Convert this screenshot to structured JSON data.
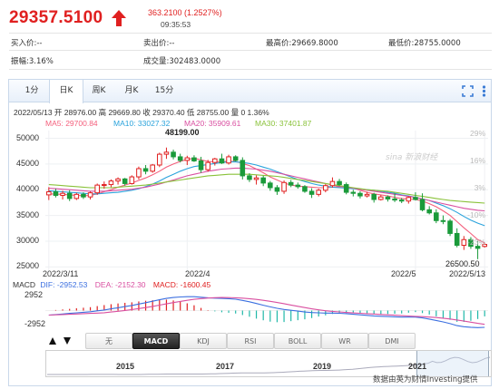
{
  "quote": {
    "price": "29357.5100",
    "change": "363.2100 (1.2527%)",
    "time": "09:35:53",
    "up_color": "#e02020"
  },
  "info": {
    "row1": [
      "买入价:--",
      "卖出价:--",
      "最高价:29669.8000",
      "最低价:28755.0000"
    ],
    "row2": [
      "振幅:3.16%",
      "成交量:302483.0000"
    ]
  },
  "tabs": [
    {
      "label": "1分",
      "active": false
    },
    {
      "label": "日K",
      "active": true
    },
    {
      "label": "周K",
      "active": false
    },
    {
      "label": "月K",
      "active": false
    },
    {
      "label": "15分",
      "active": false
    }
  ],
  "toolbar_icons": [
    "fullscreen-icon",
    "more-icon"
  ],
  "ohlc_line": "2022/05/13 开 28976.00 高 29669.80 收 29370.40 低 28755.00 量 0 1.36%",
  "ma_legend": [
    {
      "label": "MA5: 29700.84",
      "color": "#f45f7c"
    },
    {
      "label": "MA10: 33027.32",
      "color": "#2aa3dc"
    },
    {
      "label": "MA20: 35909.61",
      "color": "#d94fa0"
    },
    {
      "label": "MA30: 37401.87",
      "color": "#8ac23a"
    }
  ],
  "watermark": "sina 新浪财经",
  "annotations": {
    "high": "48199.00",
    "low": "26500.50"
  },
  "macd_legend": {
    "name": "MACD",
    "dif": "DIF: -2952.53",
    "dea": "DEA: -2152.30",
    "macd": "MACD: -1600.45",
    "dif_color": "#3b6fe0",
    "dea_color": "#d94fa0",
    "macd_color": "#e02020"
  },
  "macd_axis": [
    "2952",
    "-2952"
  ],
  "indicator_buttons": [
    {
      "label": "无",
      "active": false
    },
    {
      "label": "MACD",
      "active": true
    },
    {
      "label": "KDJ",
      "active": false
    },
    {
      "label": "RSI",
      "active": false
    },
    {
      "label": "BOLL",
      "active": false
    },
    {
      "label": "WR",
      "active": false
    },
    {
      "label": "DMI",
      "active": false
    }
  ],
  "overview_years": [
    "2015",
    "2017",
    "2019",
    "2021"
  ],
  "source_text": "数据由英为财情Investing提供",
  "chart_data": {
    "type": "candlestick",
    "x_tick_labels": [
      "2022/3/11",
      "2022/4",
      "2022/5",
      "2022/5/13"
    ],
    "y_ticks": [
      50000,
      45000,
      40000,
      35000,
      30000,
      25000
    ],
    "ylim": [
      24000,
      51500
    ],
    "right_pct_ticks": [
      "29%",
      "16%",
      "3%",
      "-10%",
      "-23%"
    ],
    "candles": [
      {
        "o": 39000,
        "h": 40500,
        "l": 38000,
        "c": 39600
      },
      {
        "o": 39600,
        "h": 40200,
        "l": 38500,
        "c": 38900
      },
      {
        "o": 38900,
        "h": 39800,
        "l": 38100,
        "c": 39300
      },
      {
        "o": 39300,
        "h": 39900,
        "l": 37800,
        "c": 38300
      },
      {
        "o": 38300,
        "h": 39400,
        "l": 38000,
        "c": 39100
      },
      {
        "o": 39100,
        "h": 39500,
        "l": 38200,
        "c": 38600
      },
      {
        "o": 38600,
        "h": 39700,
        "l": 38100,
        "c": 39400
      },
      {
        "o": 39400,
        "h": 41200,
        "l": 39000,
        "c": 40900
      },
      {
        "o": 40900,
        "h": 41600,
        "l": 40200,
        "c": 41000
      },
      {
        "o": 41000,
        "h": 42000,
        "l": 40500,
        "c": 41700
      },
      {
        "o": 41700,
        "h": 42400,
        "l": 41000,
        "c": 42100
      },
      {
        "o": 42100,
        "h": 42300,
        "l": 40800,
        "c": 41200
      },
      {
        "o": 41200,
        "h": 42800,
        "l": 41000,
        "c": 42500
      },
      {
        "o": 42500,
        "h": 44500,
        "l": 42000,
        "c": 44100
      },
      {
        "o": 44100,
        "h": 44800,
        "l": 43000,
        "c": 43600
      },
      {
        "o": 43600,
        "h": 45000,
        "l": 43300,
        "c": 44800
      },
      {
        "o": 44800,
        "h": 47200,
        "l": 44400,
        "c": 46900
      },
      {
        "o": 46900,
        "h": 48199,
        "l": 46000,
        "c": 47300
      },
      {
        "o": 47300,
        "h": 47800,
        "l": 45900,
        "c": 46400
      },
      {
        "o": 46400,
        "h": 47000,
        "l": 45300,
        "c": 45700
      },
      {
        "o": 45700,
        "h": 46600,
        "l": 44800,
        "c": 46200
      },
      {
        "o": 46200,
        "h": 46700,
        "l": 45400,
        "c": 45600
      },
      {
        "o": 45600,
        "h": 46400,
        "l": 43300,
        "c": 43900
      },
      {
        "o": 43900,
        "h": 45800,
        "l": 43500,
        "c": 45300
      },
      {
        "o": 45300,
        "h": 46200,
        "l": 44700,
        "c": 46000
      },
      {
        "o": 46000,
        "h": 47000,
        "l": 45000,
        "c": 45200
      },
      {
        "o": 45200,
        "h": 46800,
        "l": 44900,
        "c": 46400
      },
      {
        "o": 46400,
        "h": 46700,
        "l": 45500,
        "c": 45700
      },
      {
        "o": 45700,
        "h": 46300,
        "l": 42000,
        "c": 42700
      },
      {
        "o": 42700,
        "h": 43200,
        "l": 41500,
        "c": 42000
      },
      {
        "o": 42000,
        "h": 42800,
        "l": 41000,
        "c": 42300
      },
      {
        "o": 42300,
        "h": 42700,
        "l": 40700,
        "c": 41300
      },
      {
        "o": 41300,
        "h": 41700,
        "l": 39800,
        "c": 40400
      },
      {
        "o": 40400,
        "h": 40900,
        "l": 39000,
        "c": 39700
      },
      {
        "o": 39700,
        "h": 41800,
        "l": 39200,
        "c": 41400
      },
      {
        "o": 41400,
        "h": 41900,
        "l": 40500,
        "c": 40900
      },
      {
        "o": 40900,
        "h": 41400,
        "l": 40200,
        "c": 40600
      },
      {
        "o": 40600,
        "h": 40900,
        "l": 39400,
        "c": 39700
      },
      {
        "o": 39700,
        "h": 40300,
        "l": 38400,
        "c": 39100
      },
      {
        "o": 39100,
        "h": 40200,
        "l": 38700,
        "c": 39900
      },
      {
        "o": 39900,
        "h": 41100,
        "l": 39500,
        "c": 40800
      },
      {
        "o": 40800,
        "h": 42400,
        "l": 40400,
        "c": 41600
      },
      {
        "o": 41600,
        "h": 42100,
        "l": 40700,
        "c": 41000
      },
      {
        "o": 41000,
        "h": 41400,
        "l": 39100,
        "c": 39500
      },
      {
        "o": 39500,
        "h": 40000,
        "l": 38700,
        "c": 39300
      },
      {
        "o": 39300,
        "h": 39700,
        "l": 38300,
        "c": 38800
      },
      {
        "o": 38800,
        "h": 39600,
        "l": 38500,
        "c": 39100
      },
      {
        "o": 39100,
        "h": 39400,
        "l": 37500,
        "c": 38100
      },
      {
        "o": 38100,
        "h": 39000,
        "l": 37900,
        "c": 38600
      },
      {
        "o": 38600,
        "h": 38900,
        "l": 37700,
        "c": 38200
      },
      {
        "o": 38200,
        "h": 39300,
        "l": 37600,
        "c": 38000
      },
      {
        "o": 38000,
        "h": 38400,
        "l": 37400,
        "c": 37800
      },
      {
        "o": 37800,
        "h": 38700,
        "l": 37300,
        "c": 38500
      },
      {
        "o": 38500,
        "h": 39500,
        "l": 37900,
        "c": 38100
      },
      {
        "o": 38100,
        "h": 39300,
        "l": 35800,
        "c": 36100
      },
      {
        "o": 36100,
        "h": 36800,
        "l": 35200,
        "c": 35500
      },
      {
        "o": 35500,
        "h": 36200,
        "l": 33500,
        "c": 34000
      },
      {
        "o": 34000,
        "h": 35000,
        "l": 33300,
        "c": 33900
      },
      {
        "o": 33900,
        "h": 34300,
        "l": 31000,
        "c": 31500
      },
      {
        "o": 31500,
        "h": 32500,
        "l": 28800,
        "c": 29200
      },
      {
        "o": 29200,
        "h": 31000,
        "l": 28300,
        "c": 30300
      },
      {
        "o": 30300,
        "h": 30800,
        "l": 28500,
        "c": 29000
      },
      {
        "o": 29000,
        "h": 30000,
        "l": 26500.5,
        "c": 28600
      },
      {
        "o": 28976,
        "h": 29669.8,
        "l": 28755,
        "c": 29370.4
      }
    ],
    "ma_series": [
      {
        "name": "MA5",
        "values": [
          39200,
          39150,
          39100,
          39000,
          38900,
          38850,
          38900,
          39200,
          39600,
          40000,
          40500,
          40900,
          41300,
          41800,
          42300,
          42900,
          43600,
          44400,
          45000,
          45500,
          45900,
          46100,
          45800,
          45500,
          45400,
          45500,
          45500,
          45500,
          45100,
          44700,
          44000,
          43300,
          42500,
          41900,
          41300,
          40900,
          40700,
          40600,
          40500,
          40400,
          40400,
          40500,
          40600,
          40500,
          40300,
          39900,
          39500,
          39200,
          39000,
          38800,
          38500,
          38300,
          38200,
          38100,
          37800,
          37300,
          36700,
          35900,
          35000,
          33800,
          32600,
          31500,
          30300,
          29700
        ]
      },
      {
        "name": "MA10",
        "values": [
          39800,
          39700,
          39600,
          39500,
          39400,
          39300,
          39200,
          39200,
          39300,
          39400,
          39500,
          39700,
          39900,
          40200,
          40600,
          41100,
          41700,
          42400,
          43000,
          43600,
          44100,
          44500,
          44700,
          44900,
          45100,
          45300,
          45400,
          45400,
          45300,
          45100,
          44800,
          44400,
          44000,
          43500,
          43000,
          42500,
          42000,
          41600,
          41200,
          40900,
          40700,
          40500,
          40400,
          40300,
          40200,
          40100,
          40000,
          39900,
          39700,
          39500,
          39300,
          39000,
          38800,
          38500,
          38200,
          37900,
          37400,
          36900,
          36300,
          35600,
          34800,
          34100,
          33500,
          33000
        ]
      },
      {
        "name": "MA20",
        "values": [
          40300,
          40200,
          40100,
          40000,
          39900,
          39800,
          39700,
          39700,
          39700,
          39800,
          39900,
          40000,
          40100,
          40300,
          40500,
          40800,
          41100,
          41500,
          41900,
          42300,
          42700,
          43000,
          43300,
          43600,
          43800,
          44000,
          44100,
          44200,
          44200,
          44100,
          44000,
          43800,
          43600,
          43300,
          43000,
          42700,
          42400,
          42100,
          41800,
          41500,
          41200,
          40900,
          40700,
          40500,
          40300,
          40100,
          39900,
          39700,
          39500,
          39300,
          39100,
          38900,
          38700,
          38500,
          38200,
          37900,
          37600,
          37300,
          37000,
          36700,
          36400,
          36200,
          36000,
          35900
        ]
      },
      {
        "name": "MA30",
        "values": [
          41000,
          40900,
          40800,
          40700,
          40600,
          40500,
          40400,
          40400,
          40400,
          40400,
          40500,
          40600,
          40700,
          40800,
          40900,
          41100,
          41300,
          41500,
          41700,
          41900,
          42100,
          42300,
          42500,
          42700,
          42800,
          42900,
          43000,
          43000,
          43000,
          43000,
          42900,
          42800,
          42700,
          42600,
          42400,
          42200,
          42000,
          41800,
          41600,
          41400,
          41200,
          41000,
          40800,
          40600,
          40400,
          40200,
          40000,
          39900,
          39800,
          39700,
          39500,
          39300,
          39100,
          38900,
          38700,
          38500,
          38300,
          38100,
          37900,
          37800,
          37700,
          37600,
          37500,
          37400
        ]
      }
    ],
    "macd": {
      "ylim": [
        -3600,
        3600
      ],
      "dif": [
        -800,
        -700,
        -600,
        -500,
        -400,
        -300,
        -200,
        -50,
        100,
        300,
        500,
        700,
        900,
        1150,
        1400,
        1650,
        1900,
        2150,
        2300,
        2400,
        2450,
        2450,
        2350,
        2250,
        2200,
        2150,
        2100,
        2000,
        1800,
        1550,
        1250,
        950,
        650,
        400,
        200,
        50,
        -100,
        -250,
        -350,
        -400,
        -450,
        -450,
        -480,
        -550,
        -650,
        -750,
        -850,
        -950,
        -1000,
        -1050,
        -1100,
        -1150,
        -1150,
        -1150,
        -1300,
        -1500,
        -1750,
        -2000,
        -2300,
        -2650,
        -2850,
        -2950,
        -3000,
        -2952.53
      ]
    },
    "x_tick_positions_index": [
      0,
      20,
      53,
      63
    ]
  }
}
